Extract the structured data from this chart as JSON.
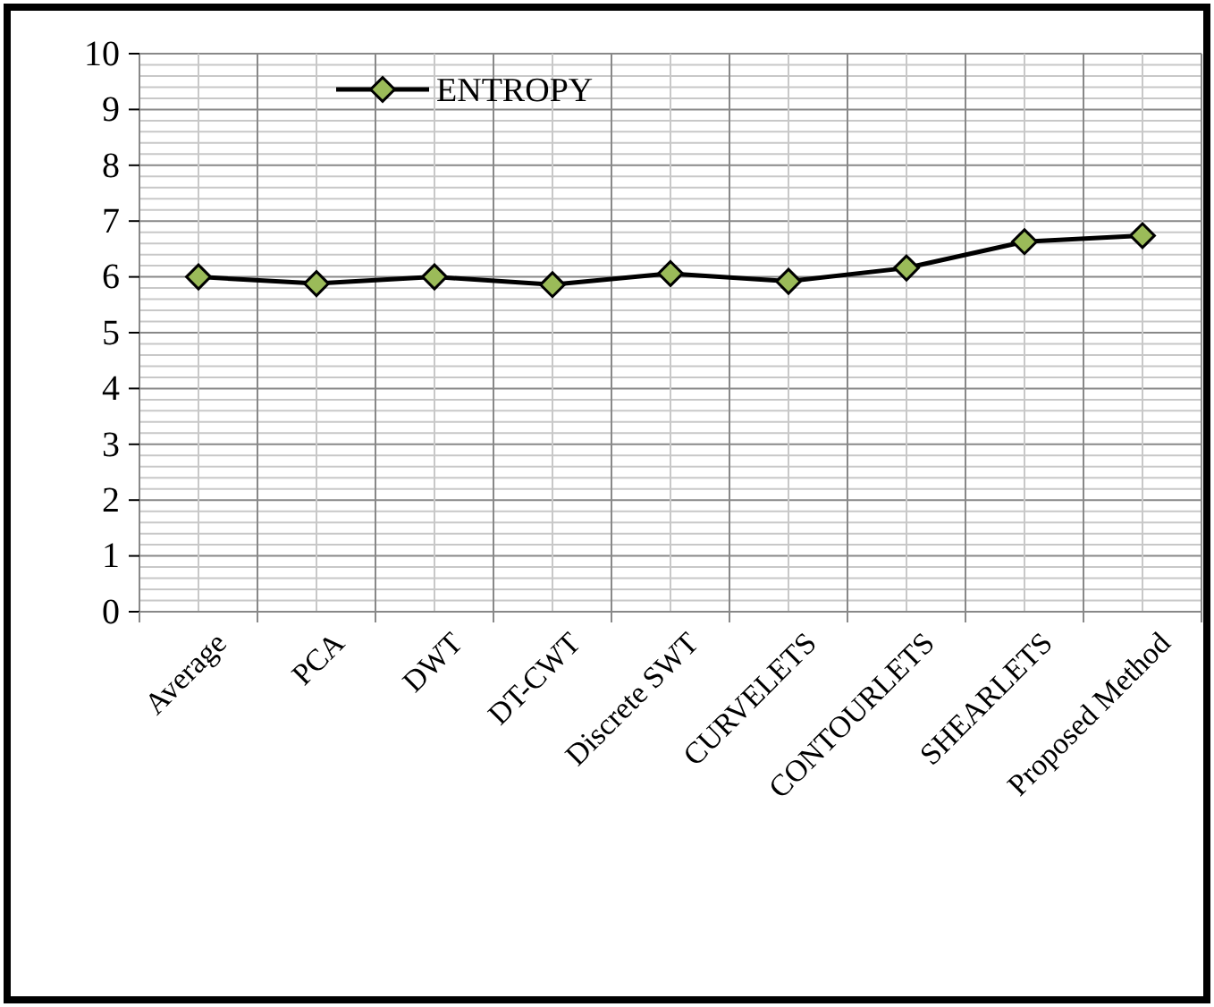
{
  "chart_data": {
    "type": "line",
    "categories": [
      "Average",
      "PCA",
      "DWT",
      "DT-CWT",
      "Discrete SWT",
      "CURVELETS",
      "CONTOURLETS",
      "SHEARLETS",
      "Proposed Method"
    ],
    "series": [
      {
        "name": "ENTROPY",
        "color": "#000000",
        "colors": [
          "#9bbb59",
          "#9bbb59",
          "#9bbb59",
          "#9bbb59",
          "#9bbb59",
          "#9bbb59",
          "#9bbb59",
          "#9bbb59",
          "#9bbb59"
        ],
        "values": [
          6.0,
          5.88,
          6.0,
          5.86,
          6.06,
          5.92,
          6.16,
          6.63,
          6.74
        ]
      }
    ],
    "ylim": [
      0,
      10
    ],
    "yticks": [
      0,
      1,
      2,
      3,
      4,
      5,
      6,
      7,
      8,
      9,
      10
    ],
    "grid": true,
    "legend": "top left",
    "marker": "diamond",
    "line_style": "solid"
  }
}
